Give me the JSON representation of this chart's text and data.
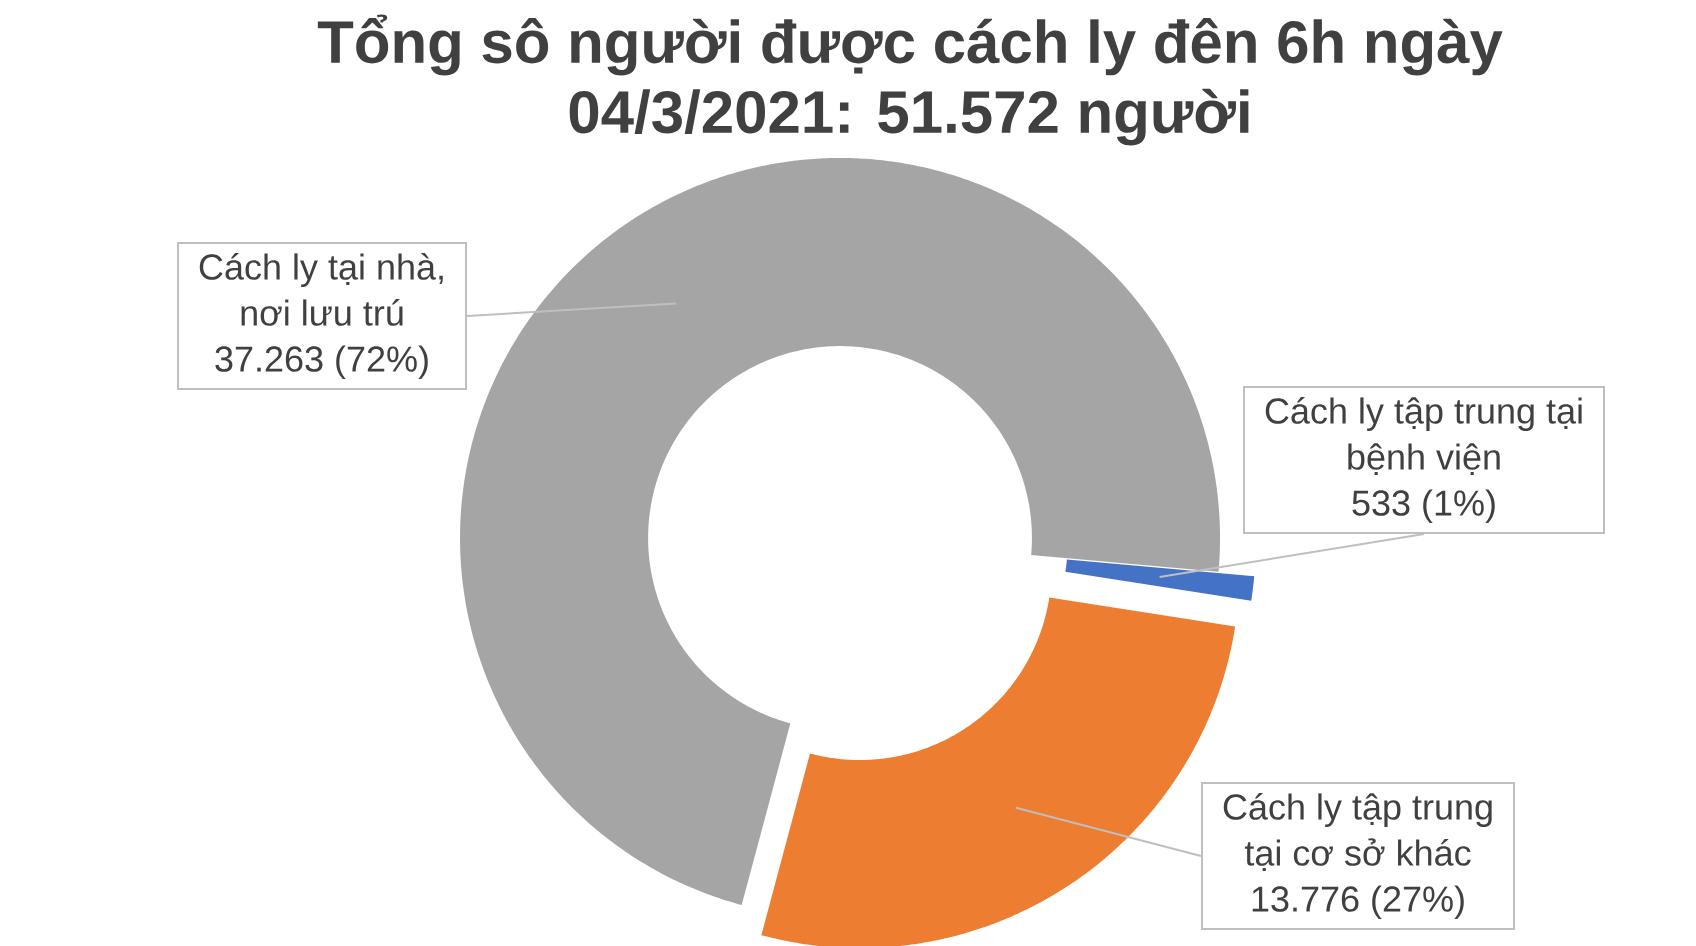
{
  "chart_data": {
    "type": "donut",
    "title": "Tổng sô người được cách ly đên 6h ngày 04/3/2021: 51.572 người",
    "categories": [
      "Cách ly tại nhà, nơi lưu trú",
      "Cách ly tập trung tại bệnh viện",
      "Cách ly tập trung tại cơ sở khác"
    ],
    "values": [
      37263,
      533,
      13776
    ],
    "colors": [
      "#a5a5a5",
      "#4472c4",
      "#ed7d31"
    ],
    "value_labels": [
      "37.263 (72%)",
      "533 (1%)",
      "13.776 (27%)"
    ]
  }
}
